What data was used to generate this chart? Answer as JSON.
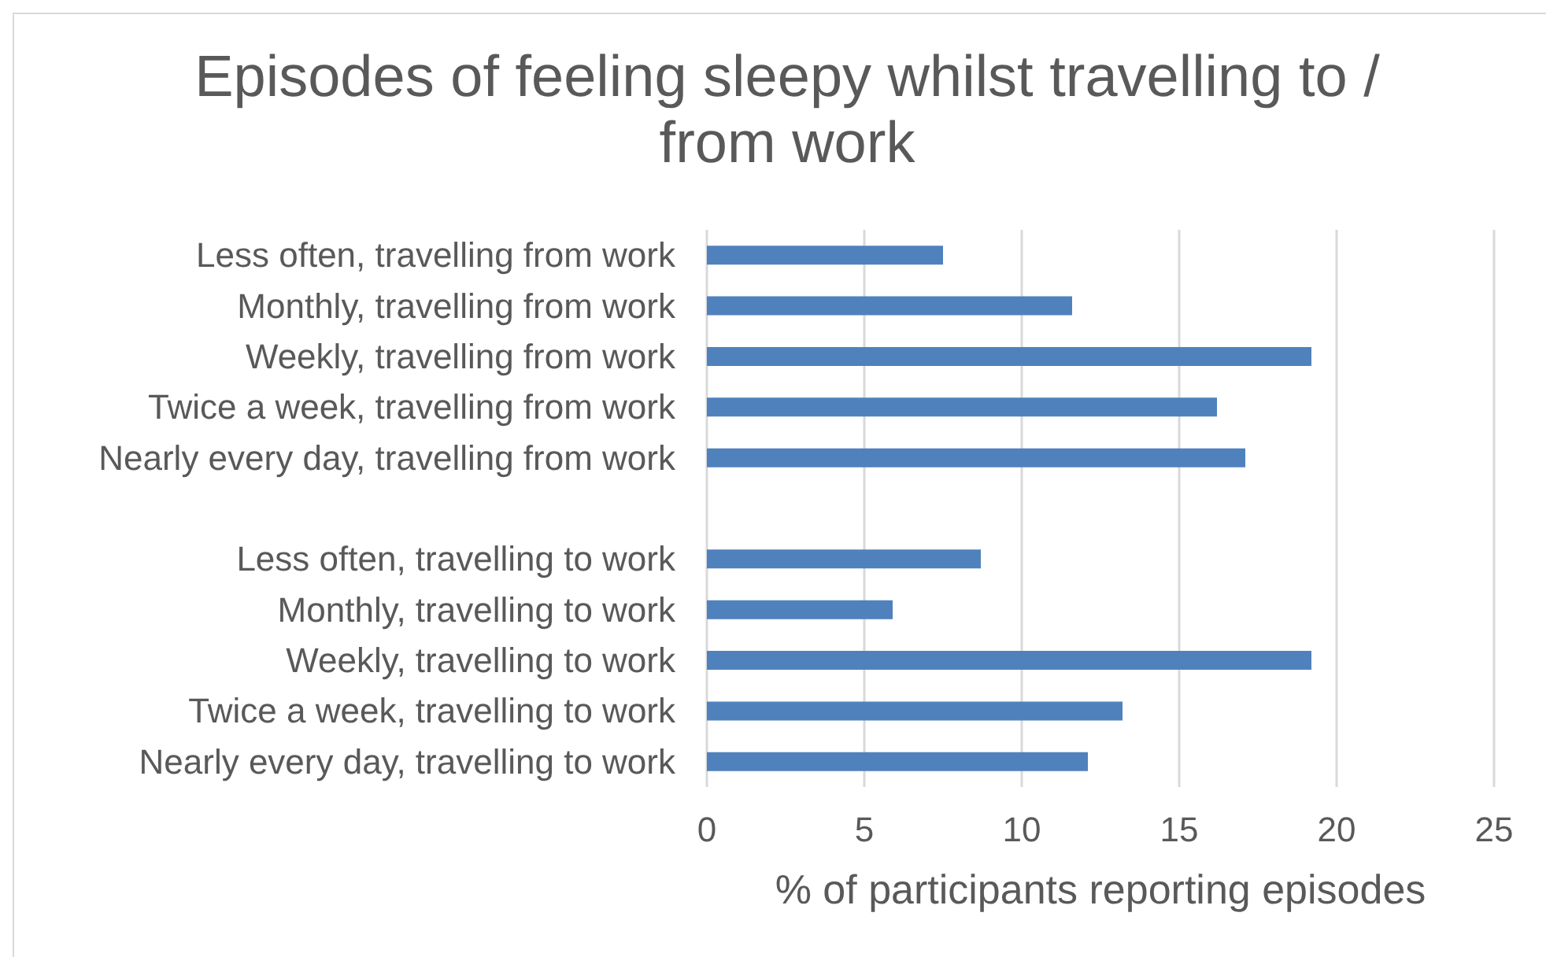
{
  "chart_data": {
    "type": "bar",
    "orientation": "horizontal",
    "title": "Episodes of feeling sleepy whilst travelling to / from work",
    "xlabel": "% of participants reporting episodes",
    "categories": [
      "Less often, travelling from work",
      "Monthly, travelling from work",
      "Weekly, travelling from work",
      "Twice a week, travelling from work",
      "Nearly every day, travelling from work",
      null,
      "Less often, travelling to work",
      "Monthly, travelling to work",
      "Weekly, travelling to work",
      "Twice a week, travelling to work",
      "Nearly every day, travelling to work"
    ],
    "values": [
      7.5,
      11.6,
      19.2,
      16.2,
      17.1,
      null,
      8.7,
      5.9,
      19.2,
      13.2,
      12.1
    ],
    "color": "#4f81bd",
    "xlim": [
      0,
      25
    ],
    "xticks": [
      0,
      5,
      10,
      15,
      20,
      25
    ],
    "grid": "x"
  }
}
